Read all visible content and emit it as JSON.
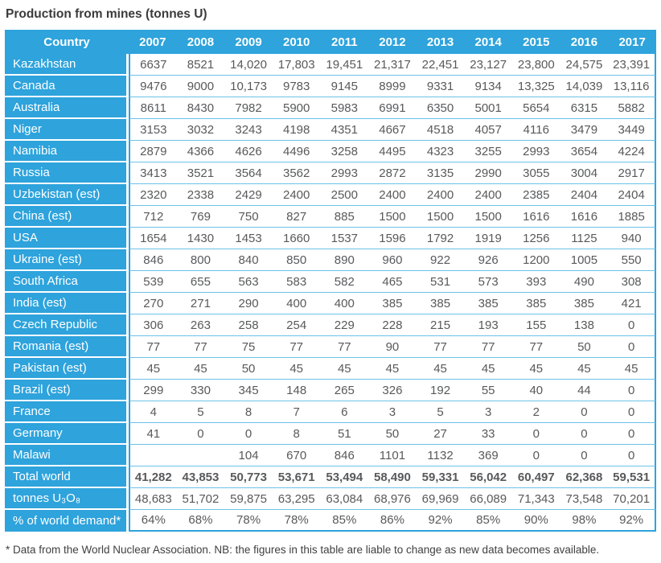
{
  "title": "Production from mines (tonnes U)",
  "footnote": "* Data from the World Nuclear Association. NB: the figures in this table are liable to change as new data becomes available.",
  "colors": {
    "header_blue": "#2ea3dc",
    "row_separator_blue": "#6bc2e8",
    "data_text": "#58595b",
    "label_text": "#ffffff"
  },
  "chart_data": {
    "type": "table",
    "title": "Production from mines (tonnes U)",
    "columns": [
      "Country",
      "2007",
      "2008",
      "2009",
      "2010",
      "2011",
      "2012",
      "2013",
      "2014",
      "2015",
      "2016",
      "2017"
    ],
    "rows": [
      {
        "label": "Kazakhstan",
        "values": [
          "6637",
          "8521",
          "14,020",
          "17,803",
          "19,451",
          "21,317",
          "22,451",
          "23,127",
          "23,800",
          "24,575",
          "23,391"
        ]
      },
      {
        "label": "Canada",
        "values": [
          "9476",
          "9000",
          "10,173",
          "9783",
          "9145",
          "8999",
          "9331",
          "9134",
          "13,325",
          "14,039",
          "13,116"
        ]
      },
      {
        "label": "Australia",
        "values": [
          "8611",
          "8430",
          "7982",
          "5900",
          "5983",
          "6991",
          "6350",
          "5001",
          "5654",
          "6315",
          "5882"
        ]
      },
      {
        "label": "Niger",
        "values": [
          "3153",
          "3032",
          "3243",
          "4198",
          "4351",
          "4667",
          "4518",
          "4057",
          "4116",
          "3479",
          "3449"
        ]
      },
      {
        "label": "Namibia",
        "values": [
          "2879",
          "4366",
          "4626",
          "4496",
          "3258",
          "4495",
          "4323",
          "3255",
          "2993",
          "3654",
          "4224"
        ]
      },
      {
        "label": "Russia",
        "values": [
          "3413",
          "3521",
          "3564",
          "3562",
          "2993",
          "2872",
          "3135",
          "2990",
          "3055",
          "3004",
          "2917"
        ]
      },
      {
        "label": "Uzbekistan (est)",
        "values": [
          "2320",
          "2338",
          "2429",
          "2400",
          "2500",
          "2400",
          "2400",
          "2400",
          "2385",
          "2404",
          "2404"
        ]
      },
      {
        "label": "China (est)",
        "values": [
          "712",
          "769",
          "750",
          "827",
          "885",
          "1500",
          "1500",
          "1500",
          "1616",
          "1616",
          "1885"
        ]
      },
      {
        "label": "USA",
        "values": [
          "1654",
          "1430",
          "1453",
          "1660",
          "1537",
          "1596",
          "1792",
          "1919",
          "1256",
          "1125",
          "940"
        ]
      },
      {
        "label": "Ukraine (est)",
        "values": [
          "846",
          "800",
          "840",
          "850",
          "890",
          "960",
          "922",
          "926",
          "1200",
          "1005",
          "550"
        ]
      },
      {
        "label": "South Africa",
        "values": [
          "539",
          "655",
          "563",
          "583",
          "582",
          "465",
          "531",
          "573",
          "393",
          "490",
          "308"
        ]
      },
      {
        "label": "India (est)",
        "values": [
          "270",
          "271",
          "290",
          "400",
          "400",
          "385",
          "385",
          "385",
          "385",
          "385",
          "421"
        ]
      },
      {
        "label": "Czech Republic",
        "values": [
          "306",
          "263",
          "258",
          "254",
          "229",
          "228",
          "215",
          "193",
          "155",
          "138",
          "0"
        ]
      },
      {
        "label": "Romania (est)",
        "values": [
          "77",
          "77",
          "75",
          "77",
          "77",
          "90",
          "77",
          "77",
          "77",
          "50",
          "0"
        ]
      },
      {
        "label": "Pakistan (est)",
        "values": [
          "45",
          "45",
          "50",
          "45",
          "45",
          "45",
          "45",
          "45",
          "45",
          "45",
          "45"
        ]
      },
      {
        "label": "Brazil (est)",
        "values": [
          "299",
          "330",
          "345",
          "148",
          "265",
          "326",
          "192",
          "55",
          "40",
          "44",
          "0"
        ]
      },
      {
        "label": "France",
        "values": [
          "4",
          "5",
          "8",
          "7",
          "6",
          "3",
          "5",
          "3",
          "2",
          "0",
          "0"
        ]
      },
      {
        "label": "Germany",
        "values": [
          "41",
          "0",
          "0",
          "8",
          "51",
          "50",
          "27",
          "33",
          "0",
          "0",
          "0"
        ]
      },
      {
        "label": "Malawi",
        "values": [
          "",
          "",
          "104",
          "670",
          "846",
          "1101",
          "1132",
          "369",
          "0",
          "0",
          "0"
        ]
      },
      {
        "label": "Total world",
        "bold": true,
        "values": [
          "41,282",
          "43,853",
          "50,773",
          "53,671",
          "53,494",
          "58,490",
          "59,331",
          "56,042",
          "60,497",
          "62,368",
          "59,531"
        ]
      },
      {
        "label": "tonnes U₃O₈",
        "values": [
          "48,683",
          "51,702",
          "59,875",
          "63,295",
          "63,084",
          "68,976",
          "69,969",
          "66,089",
          "71,343",
          "73,548",
          "70,201"
        ]
      },
      {
        "label": "% of world demand*",
        "values": [
          "64%",
          "68%",
          "78%",
          "78%",
          "85%",
          "86%",
          "92%",
          "85%",
          "90%",
          "98%",
          "92%"
        ]
      }
    ],
    "footnote": "* Data from the World Nuclear Association. NB: the figures in this table are liable to change as new data becomes available."
  }
}
